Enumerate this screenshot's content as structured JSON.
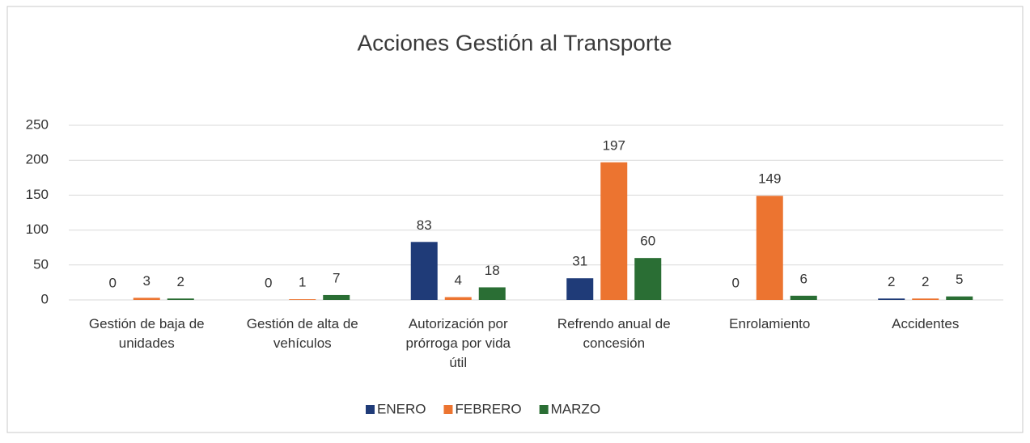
{
  "chart_data": {
    "type": "bar",
    "title": "Acciones Gestión al Transporte",
    "categories": [
      "Gestión de baja de unidades",
      "Gestión de alta de vehículos",
      "Autorización por prórroga por vida útil",
      "Refrendo anual de concesión",
      "Enrolamiento",
      "Accidentes"
    ],
    "series": [
      {
        "name": "ENERO",
        "color": "#1f3b78",
        "values": [
          0,
          0,
          83,
          31,
          0,
          2
        ]
      },
      {
        "name": "FEBRERO",
        "color": "#ec7430",
        "values": [
          3,
          1,
          4,
          197,
          149,
          2
        ]
      },
      {
        "name": "MARZO",
        "color": "#2a6e34",
        "values": [
          2,
          7,
          18,
          60,
          6,
          5
        ]
      }
    ],
    "ylim": [
      0,
      250
    ],
    "yticks": [
      0,
      50,
      100,
      150,
      200,
      250
    ],
    "grid": true,
    "legend": "bottom"
  }
}
